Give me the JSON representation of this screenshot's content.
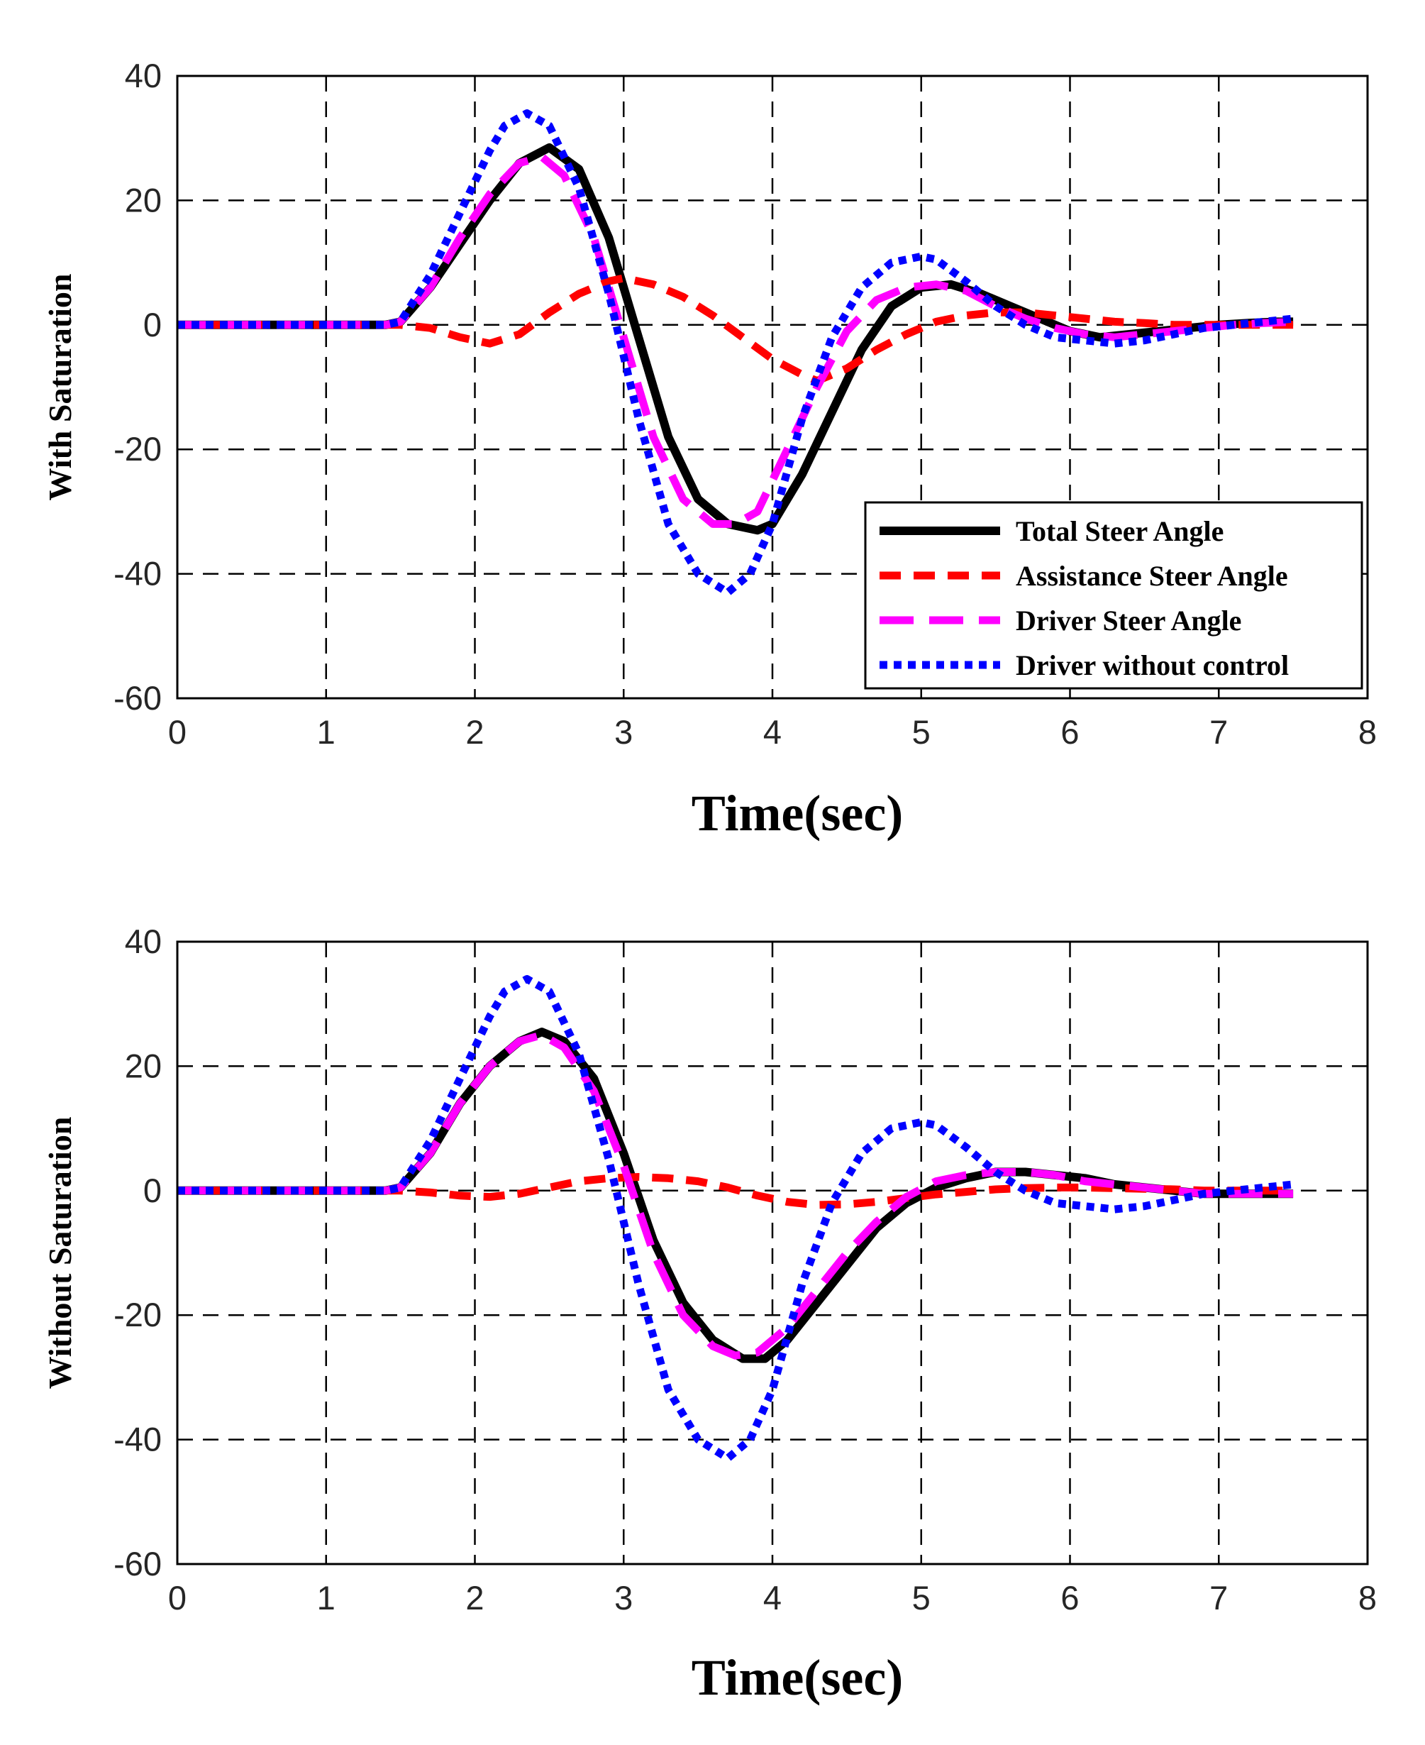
{
  "chart_data": [
    {
      "type": "line",
      "ylabel": "With Saturation",
      "xlabel": "Time(sec)",
      "xlim": [
        0,
        8
      ],
      "ylim": [
        -60,
        40
      ],
      "xticks": [
        "0",
        "1",
        "2",
        "3",
        "4",
        "5",
        "6",
        "7",
        "8"
      ],
      "yticks": [
        "40",
        "20",
        "0",
        "-20",
        "-40",
        "-60"
      ],
      "grid": true,
      "legend_position": "bottom-right",
      "series": [
        {
          "name": "Total Steer Angle",
          "color": "#000000",
          "style": "solid",
          "x": [
            0,
            1.4,
            1.5,
            1.7,
            1.9,
            2.1,
            2.3,
            2.5,
            2.7,
            2.9,
            3.1,
            3.3,
            3.5,
            3.7,
            3.9,
            4.0,
            4.2,
            4.4,
            4.6,
            4.8,
            5.0,
            5.2,
            5.4,
            5.6,
            5.8,
            6.0,
            6.2,
            6.4,
            6.6,
            6.8,
            7.0,
            7.2,
            7.4,
            7.5
          ],
          "y": [
            0,
            0,
            0.5,
            6,
            13,
            20,
            26,
            28.5,
            25,
            14,
            -2,
            -18,
            -28,
            -32,
            -33,
            -32,
            -24,
            -14,
            -4,
            3,
            6,
            6.5,
            5,
            3,
            1,
            -1,
            -2,
            -1.5,
            -1,
            -0.5,
            0,
            0.3,
            0.5,
            0.5
          ]
        },
        {
          "name": "Assistance Steer Angle",
          "color": "#ff0000",
          "style": "dashed",
          "x": [
            0,
            1.5,
            1.7,
            1.9,
            2.1,
            2.3,
            2.5,
            2.7,
            2.9,
            3.0,
            3.2,
            3.4,
            3.6,
            3.8,
            4.0,
            4.2,
            4.3,
            4.5,
            4.7,
            4.9,
            5.1,
            5.3,
            5.5,
            5.7,
            5.9,
            6.1,
            6.3,
            6.5,
            6.7,
            6.9,
            7.1,
            7.3,
            7.5
          ],
          "y": [
            0,
            0,
            -0.5,
            -2,
            -3,
            -1.5,
            2,
            5,
            7,
            7.5,
            6.5,
            4.5,
            1.5,
            -2,
            -5.5,
            -8,
            -9,
            -7,
            -4,
            -1.5,
            0.5,
            1.5,
            2,
            2,
            1.5,
            1,
            0.5,
            0.3,
            0,
            0,
            0,
            0,
            0
          ]
        },
        {
          "name": "Driver Steer Angle",
          "color": "#ff00ff",
          "style": "longdash",
          "x": [
            0,
            1.4,
            1.5,
            1.7,
            1.9,
            2.1,
            2.3,
            2.45,
            2.6,
            2.8,
            3.0,
            3.2,
            3.4,
            3.6,
            3.75,
            3.9,
            4.1,
            4.3,
            4.5,
            4.7,
            4.9,
            5.1,
            5.3,
            5.5,
            5.7,
            5.9,
            6.1,
            6.3,
            6.5,
            6.7,
            6.9,
            7.1,
            7.3,
            7.5
          ],
          "y": [
            0,
            0,
            0.5,
            6,
            14,
            21,
            26,
            27,
            24,
            14,
            -2,
            -18,
            -28,
            -32,
            -32,
            -30,
            -20,
            -10,
            -1,
            4,
            6,
            6.5,
            5.5,
            3,
            1,
            -0.5,
            -1.5,
            -2,
            -1.5,
            -1,
            -0.5,
            0,
            0.3,
            0.5
          ]
        },
        {
          "name": "Driver without control",
          "color": "#0000ff",
          "style": "dotted",
          "x": [
            0,
            1.4,
            1.5,
            1.7,
            1.9,
            2.1,
            2.2,
            2.35,
            2.5,
            2.7,
            2.9,
            3.1,
            3.3,
            3.5,
            3.7,
            3.85,
            4.0,
            4.2,
            4.4,
            4.6,
            4.8,
            5.0,
            5.1,
            5.3,
            5.5,
            5.7,
            5.9,
            6.1,
            6.3,
            6.5,
            6.7,
            6.9,
            7.1,
            7.3,
            7.5
          ],
          "y": [
            0,
            0,
            0.5,
            8,
            18,
            28,
            32,
            34,
            32,
            22,
            5,
            -15,
            -32,
            -40,
            -43,
            -40,
            -32,
            -15,
            -2,
            6,
            10,
            11,
            10.5,
            7,
            3,
            0,
            -2,
            -2.5,
            -3,
            -2.5,
            -1.5,
            -0.5,
            0,
            0.5,
            1
          ]
        }
      ]
    },
    {
      "type": "line",
      "ylabel": "Without Saturation",
      "xlabel": "Time(sec)",
      "xlim": [
        0,
        8
      ],
      "ylim": [
        -60,
        40
      ],
      "xticks": [
        "0",
        "1",
        "2",
        "3",
        "4",
        "5",
        "6",
        "7",
        "8"
      ],
      "yticks": [
        "40",
        "20",
        "0",
        "-20",
        "-40",
        "-60"
      ],
      "grid": true,
      "series": [
        {
          "name": "Total Steer Angle",
          "color": "#000000",
          "style": "solid",
          "x": [
            0,
            1.4,
            1.5,
            1.7,
            1.9,
            2.1,
            2.3,
            2.45,
            2.6,
            2.8,
            3.0,
            3.2,
            3.4,
            3.6,
            3.8,
            3.95,
            4.1,
            4.3,
            4.5,
            4.7,
            4.9,
            5.1,
            5.3,
            5.5,
            5.7,
            5.9,
            6.1,
            6.3,
            6.5,
            6.7,
            6.9,
            7.1,
            7.3,
            7.5
          ],
          "y": [
            0,
            0,
            0.5,
            6,
            14,
            20,
            24,
            25.5,
            24,
            18,
            6,
            -8,
            -18,
            -24,
            -27,
            -27,
            -24,
            -18,
            -12,
            -6,
            -2,
            0.5,
            2,
            3,
            3,
            2.5,
            2,
            1,
            0.5,
            0,
            -0.5,
            -0.5,
            -0.5,
            -0.5
          ]
        },
        {
          "name": "Assistance Steer Angle",
          "color": "#ff0000",
          "style": "dashed",
          "x": [
            0,
            1.5,
            1.7,
            1.9,
            2.1,
            2.3,
            2.5,
            2.7,
            2.9,
            3.1,
            3.3,
            3.5,
            3.7,
            3.9,
            4.1,
            4.3,
            4.5,
            4.7,
            4.9,
            5.1,
            5.3,
            5.5,
            5.7,
            5.9,
            6.1,
            6.3,
            6.5,
            6.7,
            6.9,
            7.1,
            7.3,
            7.5
          ],
          "y": [
            0,
            0,
            -0.3,
            -0.8,
            -1,
            -0.5,
            0.5,
            1.5,
            2,
            2.2,
            2,
            1.5,
            0.5,
            -0.8,
            -1.8,
            -2.3,
            -2.2,
            -1.8,
            -1.2,
            -0.6,
            -0.2,
            0.2,
            0.4,
            0.5,
            0.5,
            0.4,
            0.3,
            0.2,
            0,
            0,
            0,
            0
          ]
        },
        {
          "name": "Driver Steer Angle",
          "color": "#ff00ff",
          "style": "longdash",
          "x": [
            0,
            1.4,
            1.5,
            1.7,
            1.9,
            2.1,
            2.3,
            2.45,
            2.6,
            2.8,
            3.0,
            3.2,
            3.4,
            3.6,
            3.75,
            3.9,
            4.1,
            4.3,
            4.5,
            4.7,
            4.9,
            5.1,
            5.3,
            5.5,
            5.7,
            5.9,
            6.1,
            6.3,
            6.5,
            6.7,
            6.9,
            7.1,
            7.3,
            7.5
          ],
          "y": [
            0,
            0,
            0.5,
            6,
            14,
            20,
            24,
            25,
            23,
            16,
            4,
            -10,
            -20,
            -25,
            -26.5,
            -26,
            -22,
            -16,
            -10,
            -5,
            -1,
            1.5,
            2.5,
            3,
            3,
            2.5,
            1.5,
            1,
            0.5,
            0,
            -0.5,
            -0.5,
            -0.5,
            -0.5
          ]
        },
        {
          "name": "Driver without control",
          "color": "#0000ff",
          "style": "dotted",
          "x": [
            0,
            1.4,
            1.5,
            1.7,
            1.9,
            2.1,
            2.2,
            2.35,
            2.5,
            2.7,
            2.9,
            3.1,
            3.3,
            3.5,
            3.7,
            3.85,
            4.0,
            4.2,
            4.4,
            4.6,
            4.8,
            5.0,
            5.1,
            5.3,
            5.5,
            5.7,
            5.9,
            6.1,
            6.3,
            6.5,
            6.7,
            6.9,
            7.1,
            7.3,
            7.5
          ],
          "y": [
            0,
            0,
            0.5,
            8,
            18,
            28,
            32,
            34,
            32,
            22,
            5,
            -15,
            -32,
            -40,
            -43,
            -40,
            -32,
            -15,
            -2,
            6,
            10,
            11,
            10.5,
            7,
            3,
            0,
            -2,
            -2.5,
            -3,
            -2.5,
            -1.5,
            -0.5,
            0,
            0.5,
            1
          ]
        }
      ]
    }
  ]
}
